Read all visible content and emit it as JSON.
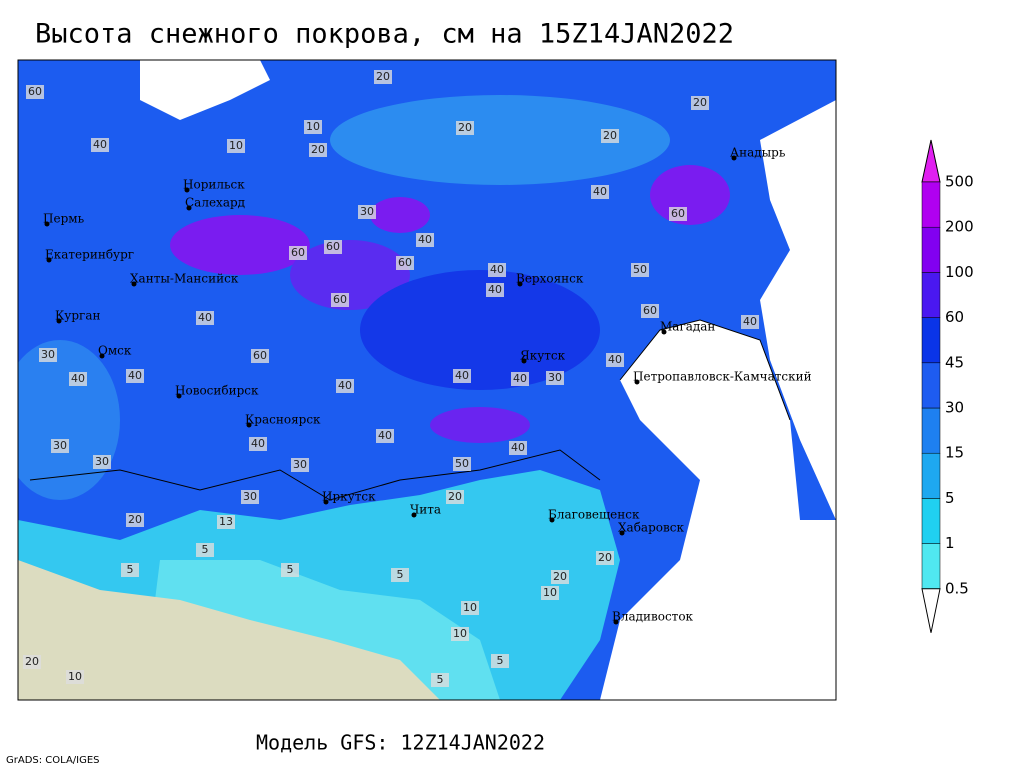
{
  "title": "Высота снежного покрова, см на 15Z14JAN2022",
  "footer": "Модель GFS: 12Z14JAN2022",
  "credit": "GrADS: COLA/IGES",
  "cities": [
    "Анадырь",
    "Норильск",
    "Салехард",
    "Пермь",
    "Екатеринбург",
    "Ханты-Мансийск",
    "Верхоянск",
    "Курган",
    "Омск",
    "Магадан",
    "Якутск",
    "Петропавловск-Камчатский",
    "Новосибирск",
    "Красноярск",
    "Иркутск",
    "Чита",
    "Благовещенск",
    "Хабаровск",
    "Владивосток"
  ],
  "legend": {
    "levels": [
      0.5,
      1,
      5,
      15,
      30,
      45,
      60,
      100,
      200,
      500
    ],
    "colors": [
      "#a8f0ff",
      "#50e8f0",
      "#20d0f0",
      "#1ea8f0",
      "#1e80f0",
      "#1e5cf0",
      "#0a34e8",
      "#4a18f0",
      "#8200f0",
      "#b000f0",
      "#e020f0"
    ]
  },
  "contour_labels": [
    20,
    60,
    10,
    20,
    20,
    20,
    10,
    20,
    40,
    40,
    60,
    30,
    40,
    60,
    60,
    60,
    40,
    50,
    40,
    60,
    40,
    60,
    60,
    30,
    40,
    40,
    40,
    40,
    40,
    40,
    30,
    40,
    40,
    40,
    30,
    30,
    50,
    30,
    30,
    20,
    20,
    13,
    5,
    5,
    5,
    20,
    5,
    10,
    10,
    10,
    5,
    20,
    5,
    10,
    20,
    40
  ]
}
